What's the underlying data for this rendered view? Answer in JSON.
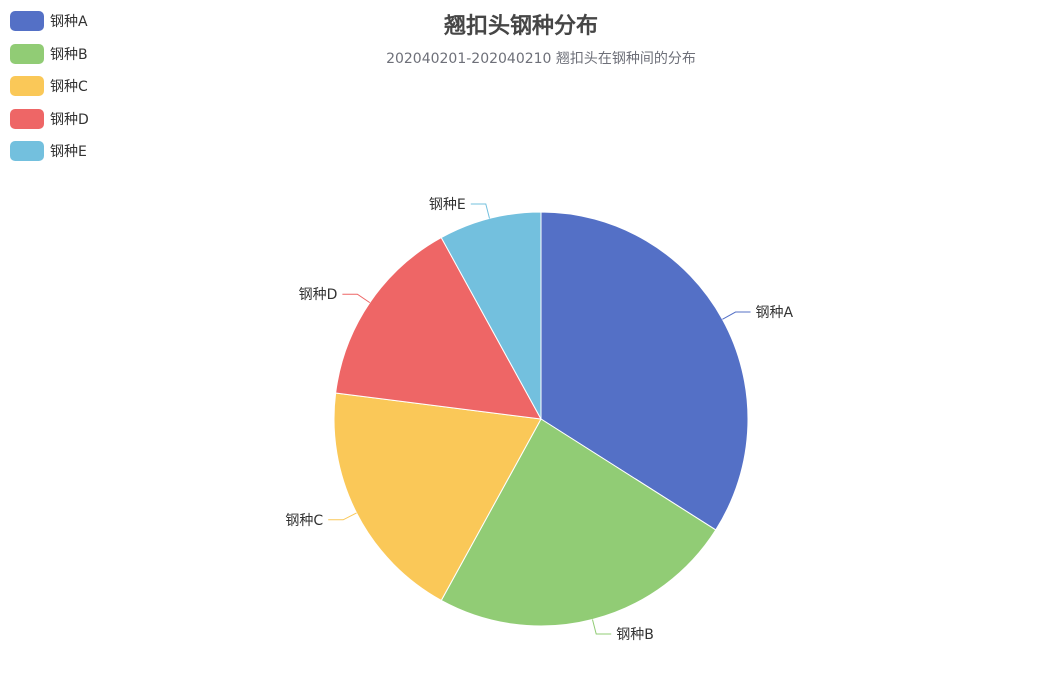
{
  "chart_data": {
    "type": "pie",
    "title": "翘扣头钢种分布",
    "subtitle": "202040201-202040210  翘扣头在钢种间的分布",
    "legend_position": "top-left",
    "categories": [
      "钢种A",
      "钢种B",
      "钢种C",
      "钢种D",
      "钢种E"
    ],
    "values": [
      34,
      24,
      19,
      15,
      8
    ],
    "colors": [
      "#5470c6",
      "#91cc75",
      "#fac858",
      "#ee6666",
      "#73c0de"
    ]
  }
}
